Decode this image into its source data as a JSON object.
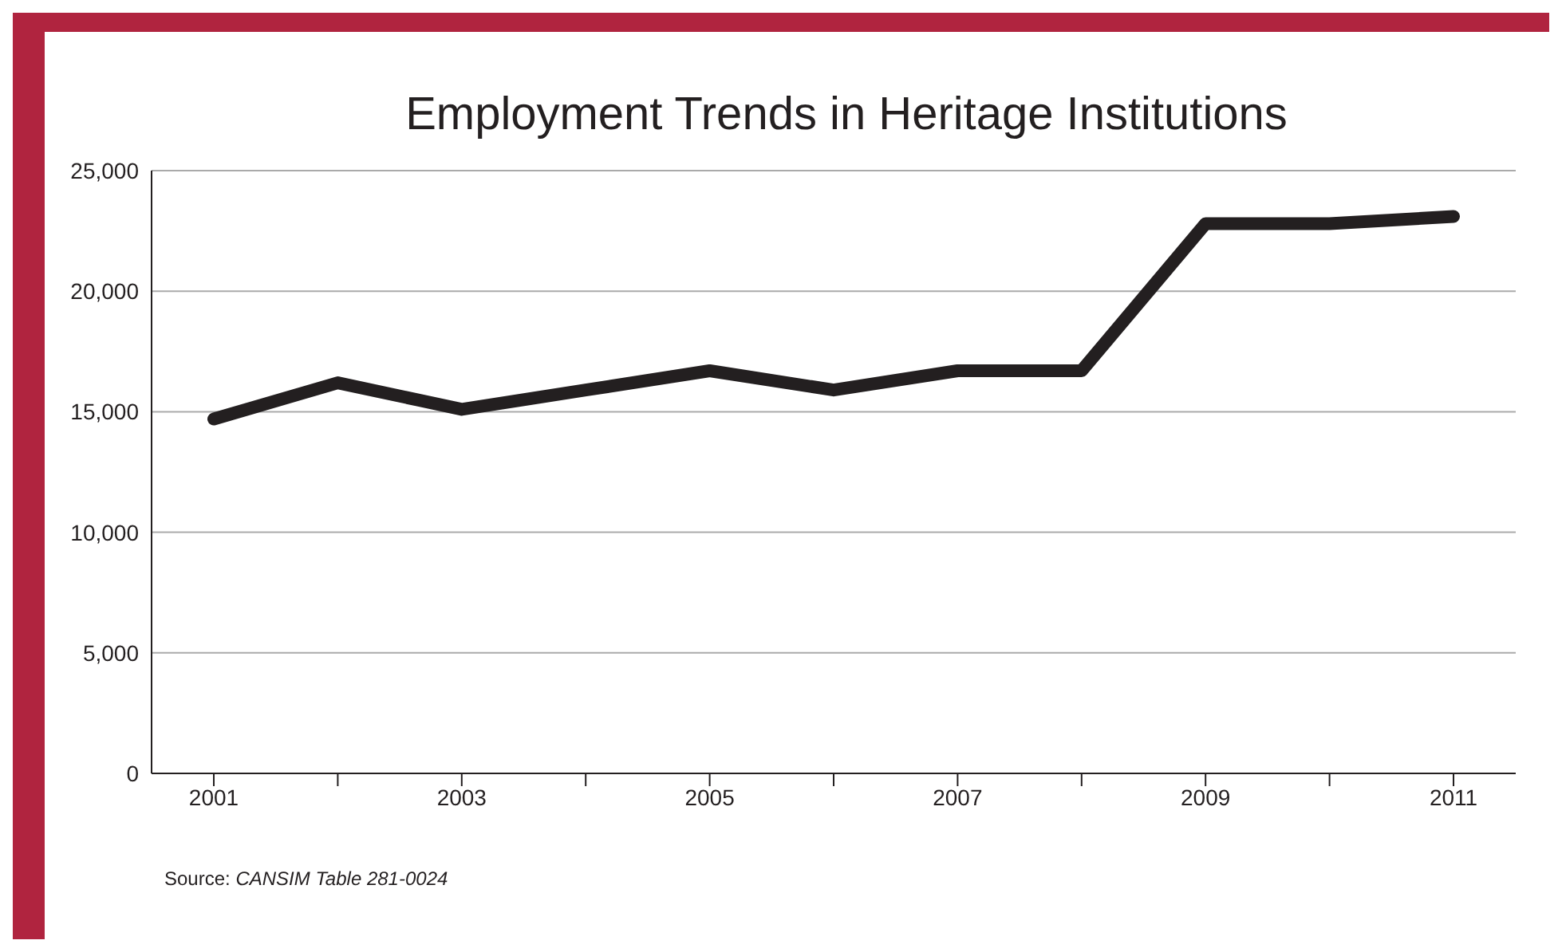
{
  "chart_data": {
    "type": "line",
    "title": "Employment Trends in Heritage Institutions",
    "categories": [
      "2001",
      null,
      "2003",
      null,
      "2005",
      null,
      "2007",
      null,
      "2009",
      null,
      "2011"
    ],
    "series": [
      {
        "color": "#231f20",
        "values": [
          14700,
          16200,
          15100,
          15900,
          16700,
          15900,
          16700,
          16700,
          22800,
          22800,
          23100
        ]
      }
    ],
    "ylim": [
      0,
      25000
    ],
    "yticks": [
      0,
      {
        "value": 5000,
        "label": "5,000"
      },
      {
        "value": 10000,
        "label": "10,000"
      },
      {
        "value": 15000,
        "label": "15,000"
      },
      {
        "value": 20000,
        "label": "20,000"
      },
      {
        "value": 25000,
        "label": "25,000"
      }
    ],
    "grid": "y",
    "marker": "none",
    "line_style": "solid",
    "annotations": [
      "Source: CANSIM Table 281-0024"
    ]
  }
}
